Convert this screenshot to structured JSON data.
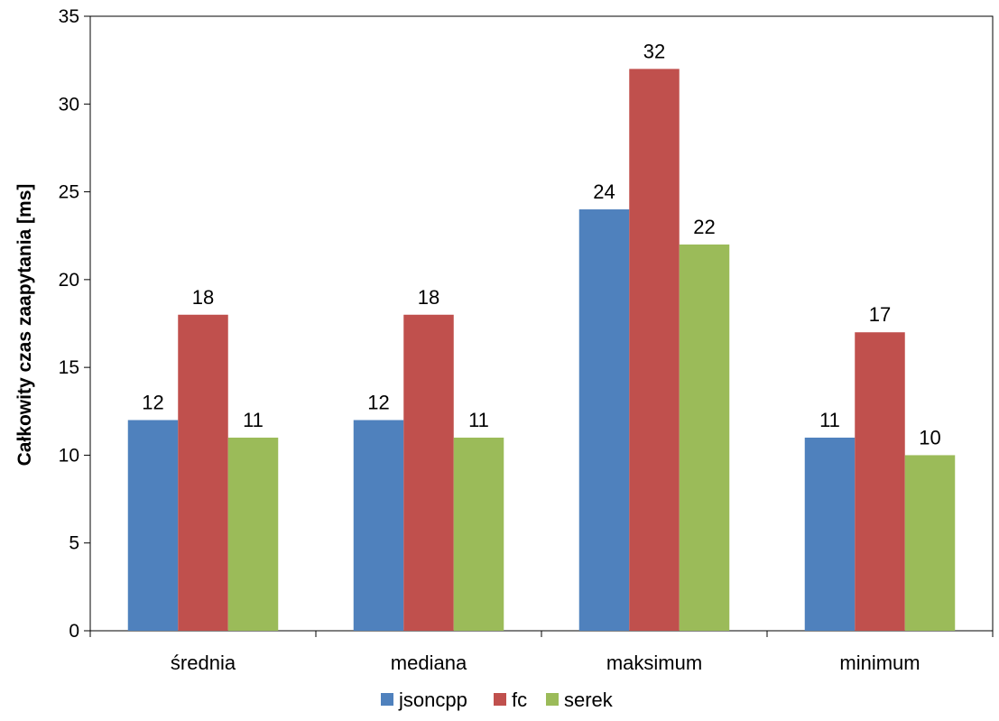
{
  "chart_data": {
    "type": "bar",
    "categories": [
      "średnia",
      "mediana",
      "maksimum",
      "minimum"
    ],
    "series": [
      {
        "name": "jsoncpp",
        "color": "#4F81BD",
        "values": [
          12,
          12,
          24,
          11
        ]
      },
      {
        "name": "fc",
        "color": "#C0504D",
        "values": [
          18,
          18,
          32,
          17
        ]
      },
      {
        "name": "serek",
        "color": "#9BBB59",
        "values": [
          11,
          11,
          22,
          10
        ]
      }
    ],
    "title": "",
    "xlabel": "",
    "ylabel": "Całkowity czas zaapytania [ms]",
    "ylim": [
      0,
      35
    ],
    "yticks": [
      0,
      5,
      10,
      15,
      20,
      25,
      30,
      35
    ],
    "grid": false,
    "legend_position": "bottom"
  }
}
